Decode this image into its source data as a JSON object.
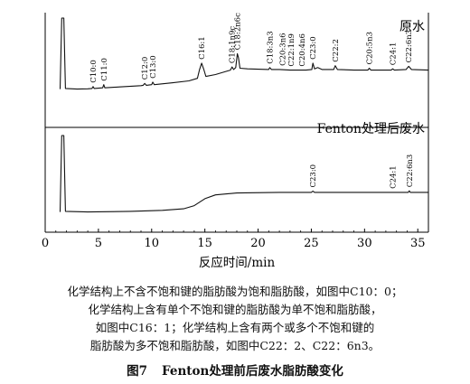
{
  "chart_data": {
    "type": "line",
    "xlabel": "反应时间/min",
    "xlim": [
      0,
      36
    ],
    "xticks": [
      0,
      5,
      10,
      15,
      20,
      25,
      30,
      35
    ],
    "panels": [
      {
        "name": "原水",
        "points": [
          [
            1.4,
            0.02
          ],
          [
            1.55,
            1.6
          ],
          [
            1.75,
            1.6
          ],
          [
            1.9,
            0.03
          ],
          [
            3,
            0.02
          ],
          [
            4,
            0.025
          ],
          [
            4.4,
            0.03
          ],
          [
            4.5,
            0.06
          ],
          [
            4.6,
            0.03
          ],
          [
            5.4,
            0.04
          ],
          [
            5.5,
            0.09
          ],
          [
            5.6,
            0.04
          ],
          [
            7,
            0.055
          ],
          [
            9,
            0.075
          ],
          [
            9.2,
            0.08
          ],
          [
            9.35,
            0.11
          ],
          [
            9.5,
            0.08
          ],
          [
            10,
            0.09
          ],
          [
            10.1,
            0.13
          ],
          [
            10.25,
            0.09
          ],
          [
            12,
            0.12
          ],
          [
            13.5,
            0.15
          ],
          [
            14.3,
            0.19
          ],
          [
            14.5,
            0.33
          ],
          [
            14.7,
            0.43
          ],
          [
            14.9,
            0.33
          ],
          [
            15.1,
            0.22
          ],
          [
            16,
            0.25
          ],
          [
            17,
            0.3
          ],
          [
            17.4,
            0.32
          ],
          [
            17.55,
            0.37
          ],
          [
            17.7,
            0.33
          ],
          [
            17.9,
            0.36
          ],
          [
            18.05,
            0.58
          ],
          [
            18.15,
            0.52
          ],
          [
            18.3,
            0.35
          ],
          [
            19,
            0.34
          ],
          [
            21,
            0.33
          ],
          [
            21.1,
            0.36
          ],
          [
            21.25,
            0.33
          ],
          [
            22,
            0.33
          ],
          [
            23,
            0.32
          ],
          [
            24.5,
            0.32
          ],
          [
            25.05,
            0.33
          ],
          [
            25.15,
            0.43
          ],
          [
            25.3,
            0.34
          ],
          [
            25.6,
            0.36
          ],
          [
            26,
            0.33
          ],
          [
            27.1,
            0.33
          ],
          [
            27.25,
            0.39
          ],
          [
            27.45,
            0.33
          ],
          [
            29,
            0.32
          ],
          [
            30.3,
            0.32
          ],
          [
            30.45,
            0.35
          ],
          [
            30.6,
            0.32
          ],
          [
            32.5,
            0.32
          ],
          [
            32.65,
            0.34
          ],
          [
            32.8,
            0.32
          ],
          [
            33.9,
            0.33
          ],
          [
            34.15,
            0.38
          ],
          [
            34.4,
            0.33
          ],
          [
            36,
            0.32
          ]
        ],
        "peak_labels": [
          {
            "label": "C10:0",
            "x": 4.5
          },
          {
            "label": "C11:0",
            "x": 5.5
          },
          {
            "label": "C12:0",
            "x": 9.35
          },
          {
            "label": "C13:0",
            "x": 10.1
          },
          {
            "label": "C16:1",
            "x": 14.7
          },
          {
            "label": "C18:1n9c",
            "x": 17.55
          },
          {
            "label": "C18:2n6c",
            "x": 18.05
          },
          {
            "label": "C18:3n3",
            "x": 21.1
          },
          {
            "label": "C20:3n6",
            "x": 22.3
          },
          {
            "label": "C22:1n9",
            "x": 23.1
          },
          {
            "label": "C20:4n6",
            "x": 24.1
          },
          {
            "label": "C23:0",
            "x": 25.15
          },
          {
            "label": "C22:2",
            "x": 27.25
          },
          {
            "label": "C20:5n3",
            "x": 30.45
          },
          {
            "label": "C24:1",
            "x": 32.65
          },
          {
            "label": "C22:6n3",
            "x": 34.15
          }
        ]
      },
      {
        "name": "Fenton处理后废水",
        "points": [
          [
            1.4,
            0.02
          ],
          [
            1.55,
            1.6
          ],
          [
            1.75,
            1.6
          ],
          [
            1.9,
            0.03
          ],
          [
            4,
            0.02
          ],
          [
            8,
            0.03
          ],
          [
            11,
            0.045
          ],
          [
            13,
            0.07
          ],
          [
            14,
            0.12
          ],
          [
            15,
            0.23
          ],
          [
            16,
            0.29
          ],
          [
            18,
            0.32
          ],
          [
            22,
            0.33
          ],
          [
            25,
            0.33
          ],
          [
            25.15,
            0.35
          ],
          [
            25.3,
            0.33
          ],
          [
            30,
            0.33
          ],
          [
            32.65,
            0.33
          ],
          [
            34.1,
            0.33
          ],
          [
            34.2,
            0.355
          ],
          [
            34.3,
            0.33
          ],
          [
            36,
            0.33
          ]
        ],
        "peak_labels": [
          {
            "label": "C23:0",
            "x": 25.15
          },
          {
            "label": "C24:1",
            "x": 32.65
          },
          {
            "label": "C22:6n3",
            "x": 34.2
          }
        ]
      }
    ]
  },
  "caption_lines": [
    "化学结构上不含不饱和键的脂肪酸为饱和脂肪酸，如图中C10：0；",
    "化学结构上含有单个不饱和键的脂肪酸为单不饱和脂肪酸，",
    "如图中C16：1；化学结构上含有两个或多个不饱和键的",
    "脂肪酸为多不饱和脂肪酸，如图中C22：2、C22：6n3。"
  ],
  "figure": {
    "number": "图7",
    "title": "Fenton处理前后废水脂肪酸变化"
  }
}
